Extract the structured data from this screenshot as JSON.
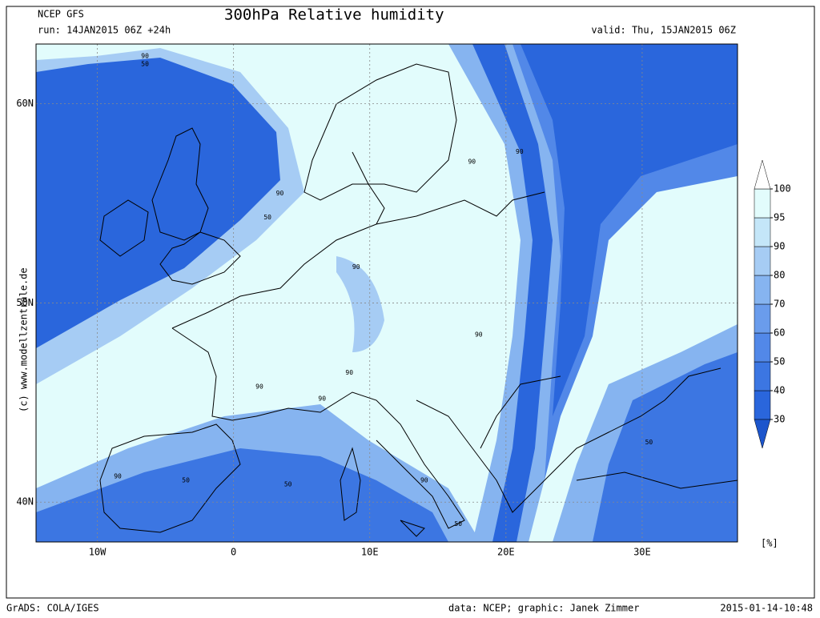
{
  "header": {
    "model": "NCEP GFS",
    "title": "300hPa Relative humidity",
    "run": "run: 14JAN2015 06Z +24h",
    "valid": "valid: Thu, 15JAN2015 06Z"
  },
  "map": {
    "lon_range": [
      -14.5,
      37
    ],
    "lat_range": [
      38,
      63
    ],
    "lon_ticks": [
      {
        "value": -10,
        "label": "10W"
      },
      0,
      {
        "value": 10,
        "label": "10E"
      },
      {
        "value": 20,
        "label": "20E"
      },
      {
        "value": 30,
        "label": "30E"
      }
    ],
    "lat_ticks": [
      {
        "value": 40,
        "label": "40N"
      },
      {
        "value": 50,
        "label": "50N"
      },
      {
        "value": 60,
        "label": "60N"
      }
    ],
    "contour_labels": [
      {
        "value": 90,
        "lon": -6.5,
        "lat": 62.4
      },
      {
        "value": 50,
        "lon": -6.5,
        "lat": 62.0
      },
      {
        "value": 90,
        "lon": 3.4,
        "lat": 55.5
      },
      {
        "value": 50,
        "lon": 2.5,
        "lat": 54.3
      },
      {
        "value": 90,
        "lon": 9,
        "lat": 51.8
      },
      {
        "value": 90,
        "lon": 17.5,
        "lat": 57.1
      },
      {
        "value": 90,
        "lon": 21,
        "lat": 57.6
      },
      {
        "value": 90,
        "lon": 18,
        "lat": 48.4
      },
      {
        "value": 90,
        "lon": 8.5,
        "lat": 46.5
      },
      {
        "value": 90,
        "lon": 1.9,
        "lat": 45.8
      },
      {
        "value": 90,
        "lon": 6.5,
        "lat": 45.2
      },
      {
        "value": 90,
        "lon": -8.5,
        "lat": 41.3
      },
      {
        "value": 50,
        "lon": -3.5,
        "lat": 41.1
      },
      {
        "value": 50,
        "lon": 4,
        "lat": 40.9
      },
      {
        "value": 90,
        "lon": 14,
        "lat": 41.1
      },
      {
        "value": 50,
        "lon": 16.5,
        "lat": 38.9
      },
      {
        "value": 50,
        "lon": 30.5,
        "lat": 43
      }
    ]
  },
  "colorbar": {
    "levels": [
      30,
      40,
      50,
      60,
      70,
      80,
      90,
      95,
      100
    ],
    "colors": [
      "#1c55cc",
      "#2a66dc",
      "#3c76e2",
      "#5288e8",
      "#6a9cec",
      "#86b4f0",
      "#a6ccf4",
      "#c4e6f8",
      "#e2fcfc",
      "#ffffff"
    ],
    "unit": "[%]"
  },
  "credit": "(c) www.modellzentrale.de",
  "footer": {
    "left": "GrADS: COLA/IGES",
    "middle": "data: NCEP; graphic: Janek Zimmer",
    "right": "2015-01-14-10:48"
  }
}
